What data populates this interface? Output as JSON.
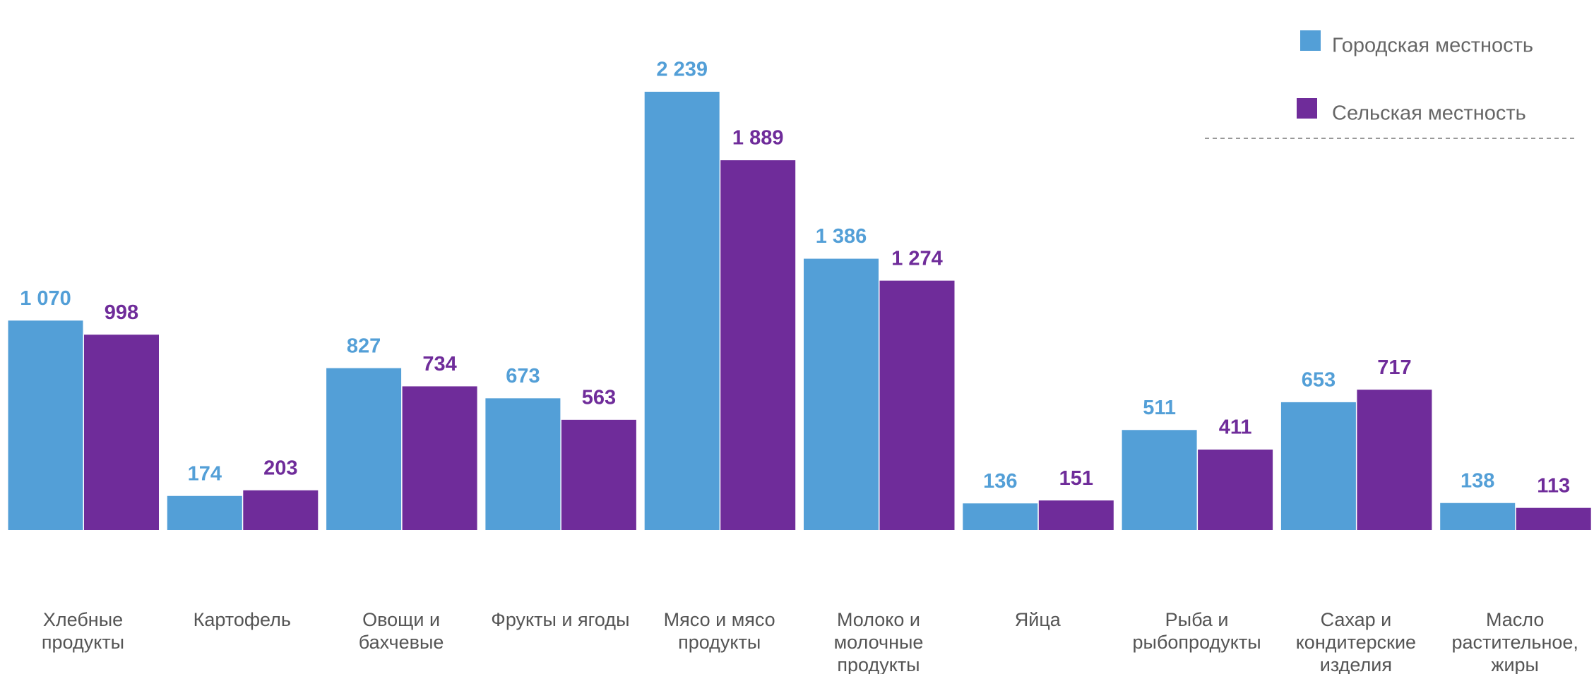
{
  "chart_data": {
    "type": "bar",
    "categories": [
      "Хлебные продукты",
      "Картофель",
      "Овощи и бахчевые",
      "Фрукты и ягоды",
      "Мясо и мясо продукты",
      "Молоко и молочные продукты",
      "Яйца",
      "Рыба и рыбопродукты",
      "Сахар и кондитерские изделия",
      "Масло растительное, жиры"
    ],
    "series": [
      {
        "name": "Городская местность",
        "color": "#539fd7",
        "values": [
          1070,
          174,
          827,
          673,
          2239,
          1386,
          136,
          511,
          653,
          138
        ],
        "value_labels": [
          "1 070",
          "174",
          "827",
          "673",
          "2 239",
          "1 386",
          "136",
          "511",
          "653",
          "138"
        ]
      },
      {
        "name": "Сельская местность",
        "color": "#6f2c9a",
        "values": [
          998,
          203,
          734,
          563,
          1889,
          1274,
          151,
          411,
          717,
          113
        ],
        "value_labels": [
          "998",
          "203",
          "734",
          "563",
          "1 889",
          "1 274",
          "151",
          "411",
          "717",
          "113"
        ]
      }
    ]
  }
}
